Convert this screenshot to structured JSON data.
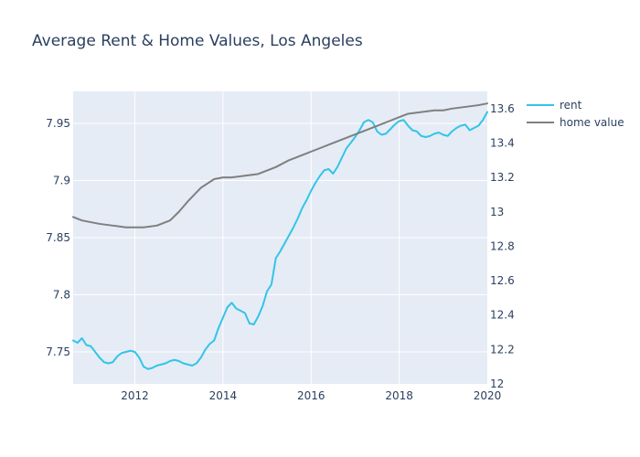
{
  "chart_data": {
    "type": "line",
    "title": "Average Rent & Home Values, Los Angeles",
    "xlabel": "",
    "ylabel": "",
    "xlim": [
      2010.6,
      2020.0
    ],
    "ylim_left": [
      7.722,
      7.978
    ],
    "ylim_right": [
      12.0,
      13.7
    ],
    "x_ticks": [
      2012,
      2014,
      2016,
      2018,
      2020
    ],
    "x_tick_labels": [
      "2012",
      "2014",
      "2016",
      "2018",
      "2020"
    ],
    "y_left_ticks": [
      7.75,
      7.8,
      7.85,
      7.9,
      7.95
    ],
    "y_left_tick_labels": [
      "7.75",
      "7.8",
      "7.85",
      "7.9",
      "7.95"
    ],
    "y_right_ticks": [
      12.0,
      12.2,
      12.4,
      12.6,
      12.8,
      13.0,
      13.2,
      13.4,
      13.6
    ],
    "y_right_tick_labels": [
      "12",
      "12.2",
      "12.4",
      "12.6",
      "12.8",
      "13",
      "13.2",
      "13.4",
      "13.6"
    ],
    "grid": true,
    "legend_position": "top-right outside",
    "plot_background": "#e5ecf6",
    "series": [
      {
        "name": "rent",
        "axis": "left",
        "color": "#33c4e8",
        "x": [
          2010.6,
          2010.7,
          2010.8,
          2010.9,
          2011.0,
          2011.1,
          2011.2,
          2011.3,
          2011.4,
          2011.5,
          2011.6,
          2011.7,
          2011.8,
          2011.9,
          2012.0,
          2012.1,
          2012.2,
          2012.3,
          2012.4,
          2012.5,
          2012.6,
          2012.7,
          2012.8,
          2012.9,
          2013.0,
          2013.1,
          2013.2,
          2013.3,
          2013.4,
          2013.5,
          2013.6,
          2013.7,
          2013.8,
          2013.9,
          2014.0,
          2014.1,
          2014.2,
          2014.3,
          2014.4,
          2014.5,
          2014.6,
          2014.7,
          2014.8,
          2014.9,
          2015.0,
          2015.1,
          2015.2,
          2015.3,
          2015.4,
          2015.5,
          2015.6,
          2015.7,
          2015.8,
          2015.9,
          2016.0,
          2016.1,
          2016.2,
          2016.3,
          2016.4,
          2016.5,
          2016.6,
          2016.7,
          2016.8,
          2016.9,
          2017.0,
          2017.1,
          2017.2,
          2017.3,
          2017.4,
          2017.5,
          2017.6,
          2017.7,
          2017.8,
          2017.9,
          2018.0,
          2018.1,
          2018.2,
          2018.3,
          2018.4,
          2018.5,
          2018.6,
          2018.7,
          2018.8,
          2018.9,
          2019.0,
          2019.1,
          2019.2,
          2019.3,
          2019.4,
          2019.5,
          2019.6,
          2019.7,
          2019.8,
          2019.9,
          2020.0
        ],
        "y": [
          7.76,
          7.758,
          7.762,
          7.756,
          7.755,
          7.75,
          7.745,
          7.741,
          7.74,
          7.741,
          7.746,
          7.749,
          7.75,
          7.751,
          7.75,
          7.745,
          7.737,
          7.735,
          7.736,
          7.738,
          7.739,
          7.74,
          7.742,
          7.743,
          7.742,
          7.74,
          7.739,
          7.738,
          7.74,
          7.745,
          7.752,
          7.757,
          7.76,
          7.771,
          7.78,
          7.789,
          7.793,
          7.788,
          7.786,
          7.784,
          7.775,
          7.774,
          7.781,
          7.79,
          7.803,
          7.809,
          7.832,
          7.838,
          7.845,
          7.852,
          7.859,
          7.867,
          7.876,
          7.883,
          7.891,
          7.898,
          7.904,
          7.909,
          7.91,
          7.906,
          7.912,
          7.92,
          7.928,
          7.933,
          7.938,
          7.944,
          7.951,
          7.953,
          7.951,
          7.943,
          7.94,
          7.941,
          7.945,
          7.949,
          7.952,
          7.953,
          7.948,
          7.944,
          7.943,
          7.939,
          7.938,
          7.939,
          7.941,
          7.942,
          7.94,
          7.939,
          7.943,
          7.946,
          7.948,
          7.949,
          7.944,
          7.946,
          7.948,
          7.953,
          7.96
        ]
      },
      {
        "name": "home value",
        "axis": "right",
        "color": "#7f7f7f",
        "x": [
          2010.6,
          2010.8,
          2011.0,
          2011.2,
          2011.5,
          2011.8,
          2012.0,
          2012.2,
          2012.5,
          2012.8,
          2013.0,
          2013.2,
          2013.5,
          2013.8,
          2014.0,
          2014.2,
          2014.5,
          2014.8,
          2015.0,
          2015.2,
          2015.5,
          2015.8,
          2016.0,
          2016.2,
          2016.5,
          2016.8,
          2017.0,
          2017.2,
          2017.5,
          2017.8,
          2018.0,
          2018.2,
          2018.5,
          2018.8,
          2019.0,
          2019.2,
          2019.5,
          2019.8,
          2020.0
        ],
        "y": [
          12.97,
          12.95,
          12.94,
          12.93,
          12.92,
          12.91,
          12.91,
          12.91,
          12.92,
          12.95,
          13.0,
          13.06,
          13.14,
          13.19,
          13.2,
          13.2,
          13.21,
          13.22,
          13.24,
          13.26,
          13.3,
          13.33,
          13.35,
          13.37,
          13.4,
          13.43,
          13.45,
          13.47,
          13.5,
          13.53,
          13.55,
          13.57,
          13.58,
          13.59,
          13.59,
          13.6,
          13.61,
          13.62,
          13.63
        ]
      }
    ]
  }
}
